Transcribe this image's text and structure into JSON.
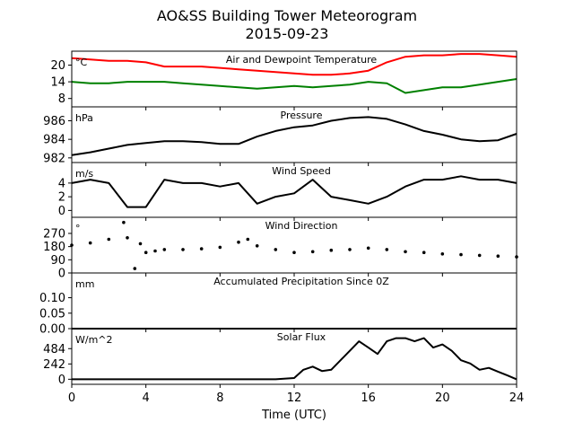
{
  "figure": {
    "title": "AO&SS Building Tower Meteorogram",
    "subtitle": "2015-09-23",
    "xlabel": "Time (UTC)"
  },
  "chart_data": [
    {
      "type": "line",
      "title": "Air and Dewpoint Temperature",
      "unit_label": "°C",
      "ylim": [
        5,
        25
      ],
      "yticks": [
        8,
        14,
        20
      ],
      "x_ticks": [
        0,
        4,
        8,
        12,
        16,
        20,
        24
      ],
      "x": [
        0,
        1,
        2,
        3,
        4,
        5,
        6,
        7,
        8,
        9,
        10,
        11,
        12,
        13,
        14,
        15,
        16,
        17,
        18,
        19,
        20,
        21,
        22,
        23,
        24
      ],
      "series": [
        {
          "color": "#ff0000",
          "values": [
            22.5,
            22,
            21.5,
            21.5,
            21,
            19.5,
            19.5,
            19.5,
            19,
            18.5,
            18,
            17.5,
            17,
            16.5,
            16.5,
            17,
            18,
            21,
            23,
            23.5,
            23.5,
            24,
            24,
            23.5,
            23
          ]
        },
        {
          "color": "#008000",
          "values": [
            14,
            13.5,
            13.5,
            14,
            14,
            14,
            13.5,
            13,
            12.5,
            12,
            11.5,
            12,
            12.5,
            12,
            12.5,
            13,
            14,
            13.5,
            10,
            11,
            12,
            12,
            13,
            14,
            15
          ]
        }
      ]
    },
    {
      "type": "line",
      "title": "Pressure",
      "unit_label": "hPa",
      "ylim": [
        981.5,
        987.5
      ],
      "yticks": [
        982,
        984,
        986
      ],
      "x_ticks": [
        0,
        4,
        8,
        12,
        16,
        20,
        24
      ],
      "x": [
        0,
        1,
        2,
        3,
        4,
        5,
        6,
        7,
        8,
        9,
        10,
        11,
        12,
        13,
        14,
        15,
        16,
        17,
        18,
        19,
        20,
        21,
        22,
        23,
        24
      ],
      "series": [
        {
          "color": "#000000",
          "values": [
            982.3,
            982.6,
            983,
            983.4,
            983.6,
            983.8,
            983.8,
            983.7,
            983.5,
            983.5,
            984.3,
            984.9,
            985.3,
            985.5,
            986,
            986.3,
            986.4,
            986.2,
            985.6,
            984.9,
            984.5,
            984,
            983.8,
            983.9,
            984.6
          ]
        }
      ]
    },
    {
      "type": "line",
      "title": "Wind Speed",
      "unit_label": "m/s",
      "ylim": [
        -1,
        7
      ],
      "yticks": [
        0,
        2,
        4
      ],
      "x_ticks": [
        0,
        4,
        8,
        12,
        16,
        20,
        24
      ],
      "x": [
        0,
        1,
        2,
        3,
        4,
        5,
        6,
        7,
        8,
        9,
        10,
        11,
        12,
        13,
        14,
        15,
        16,
        17,
        18,
        19,
        20,
        21,
        22,
        23,
        24
      ],
      "series": [
        {
          "color": "#000000",
          "values": [
            4,
            4.5,
            4,
            0.5,
            0.5,
            4.5,
            4,
            4,
            3.5,
            4,
            1,
            2,
            2.5,
            4.5,
            2,
            1.5,
            1,
            2,
            3.5,
            4.5,
            4.5,
            5,
            4.5,
            4.5,
            4
          ]
        }
      ]
    },
    {
      "type": "scatter",
      "title": "Wind Direction",
      "unit_label": "°",
      "ylim": [
        0,
        380
      ],
      "yticks": [
        0,
        90,
        180,
        270
      ],
      "x_ticks": [
        0,
        4,
        8,
        12,
        16,
        20,
        24
      ],
      "x": [
        0,
        1,
        2,
        2.8,
        3,
        3.4,
        3.7,
        4,
        4.5,
        5,
        6,
        7,
        8,
        9,
        9.5,
        10,
        11,
        12,
        13,
        14,
        15,
        16,
        17,
        18,
        19,
        20,
        21,
        22,
        23,
        24
      ],
      "series": [
        {
          "color": "#000000",
          "values": [
            190,
            205,
            230,
            345,
            240,
            30,
            200,
            140,
            150,
            160,
            160,
            165,
            175,
            210,
            230,
            185,
            160,
            140,
            145,
            155,
            160,
            170,
            160,
            145,
            140,
            130,
            125,
            120,
            115,
            110
          ]
        }
      ]
    },
    {
      "type": "line",
      "title": "Accumulated Precipitation Since 0Z",
      "unit_label": "mm",
      "ylim": [
        0,
        0.18
      ],
      "yticks": [
        0.0,
        0.05,
        0.1
      ],
      "ytick_labels": [
        "0.00",
        "0.05",
        "0.10"
      ],
      "x_ticks": [
        0,
        4,
        8,
        12,
        16,
        20,
        24
      ],
      "x": [
        0,
        24
      ],
      "series": [
        {
          "color": "#000000",
          "values": [
            0,
            0
          ]
        }
      ]
    },
    {
      "type": "line",
      "title": "Solar Flux",
      "unit_label": "W/m^2",
      "ylim": [
        -80,
        800
      ],
      "yticks": [
        0,
        242,
        484
      ],
      "x_ticks": [
        0,
        4,
        8,
        12,
        16,
        20,
        24
      ],
      "x_tick_labels": [
        "0",
        "4",
        "8",
        "12",
        "16",
        "20",
        "24"
      ],
      "x": [
        0,
        11,
        12,
        12.5,
        13,
        13.5,
        14,
        14.5,
        15,
        15.5,
        16,
        16.5,
        17,
        17.5,
        18,
        18.5,
        19,
        19.5,
        20,
        20.5,
        21,
        21.5,
        22,
        22.5,
        23,
        23.5,
        24
      ],
      "series": [
        {
          "color": "#000000",
          "values": [
            0,
            0,
            20,
            150,
            200,
            130,
            150,
            300,
            450,
            600,
            500,
            400,
            600,
            650,
            650,
            600,
            650,
            500,
            550,
            450,
            300,
            250,
            150,
            180,
            120,
            60,
            0
          ]
        }
      ]
    }
  ]
}
